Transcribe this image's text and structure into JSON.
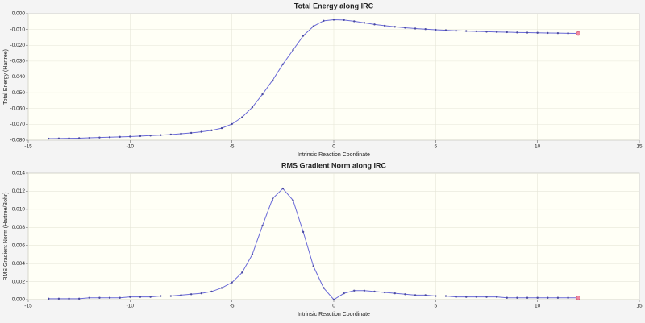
{
  "chart_data": [
    {
      "type": "line",
      "title": "Total Energy along IRC",
      "x_label": "Intrinsic Reaction Coordinate",
      "y_label": "Total Energy (Hartree)",
      "x": [
        -14,
        -13.5,
        -13,
        -12.5,
        -12,
        -11.5,
        -11,
        -10.5,
        -10,
        -9.5,
        -9,
        -8.5,
        -8,
        -7.5,
        -7,
        -6.5,
        -6,
        -5.5,
        -5,
        -4.5,
        -4,
        -3.5,
        -3,
        -2.5,
        -2,
        -1.5,
        -1,
        -0.5,
        0,
        0.5,
        1,
        1.5,
        2,
        2.5,
        3,
        3.5,
        4,
        4.5,
        5,
        5.5,
        6,
        6.5,
        7,
        7.5,
        8,
        8.5,
        9,
        9.5,
        10,
        10.5,
        11,
        11.5,
        12
      ],
      "series": [
        {
          "color": "#6a6ad8",
          "values": [
            -0.079,
            -0.0789,
            -0.0788,
            -0.0787,
            -0.0785,
            -0.0783,
            -0.0781,
            -0.0779,
            -0.0777,
            -0.0774,
            -0.0771,
            -0.0768,
            -0.0764,
            -0.0759,
            -0.0754,
            -0.0747,
            -0.0738,
            -0.0724,
            -0.0698,
            -0.0655,
            -0.0592,
            -0.051,
            -0.042,
            -0.032,
            -0.023,
            -0.014,
            -0.008,
            -0.0045,
            -0.0038,
            -0.004,
            -0.0048,
            -0.0058,
            -0.0068,
            -0.0076,
            -0.0083,
            -0.0089,
            -0.0094,
            -0.0098,
            -0.0102,
            -0.0105,
            -0.0108,
            -0.011,
            -0.0112,
            -0.0114,
            -0.0116,
            -0.0117,
            -0.0119,
            -0.012,
            -0.0121,
            -0.0122,
            -0.0123,
            -0.0124,
            -0.0125
          ]
        }
      ],
      "xlim": [
        -15,
        15
      ],
      "xticks": [
        -15,
        -10,
        -5,
        0,
        5,
        10,
        15
      ],
      "ylim": [
        -0.08,
        0.0
      ],
      "yticks": [
        {
          "value": -0.08,
          "label": "-0.080"
        },
        {
          "value": -0.07,
          "label": "-0.070"
        },
        {
          "value": -0.06,
          "label": "-0.060"
        },
        {
          "value": -0.05,
          "label": "-0.050"
        },
        {
          "value": -0.04,
          "label": "-0.040"
        },
        {
          "value": -0.03,
          "label": "-0.030"
        },
        {
          "value": -0.02,
          "label": "-0.020"
        },
        {
          "value": -0.01,
          "label": "-0.010"
        },
        {
          "value": 0.0,
          "label": "0.000"
        }
      ],
      "grid": true
    },
    {
      "type": "line",
      "title": "RMS Gradient Norm along IRC",
      "x_label": "Intrinsic Reaction Coordinate",
      "y_label": "RMS Gradient Norm (Hartree/Bohr)",
      "x": [
        -14,
        -13.5,
        -13,
        -12.5,
        -12,
        -11.5,
        -11,
        -10.5,
        -10,
        -9.5,
        -9,
        -8.5,
        -8,
        -7.5,
        -7,
        -6.5,
        -6,
        -5.5,
        -5,
        -4.5,
        -4,
        -3.5,
        -3,
        -2.5,
        -2,
        -1.5,
        -1,
        -0.5,
        0,
        0.5,
        1,
        1.5,
        2,
        2.5,
        3,
        3.5,
        4,
        4.5,
        5,
        5.5,
        6,
        6.5,
        7,
        7.5,
        8,
        8.5,
        9,
        9.5,
        10,
        10.5,
        11,
        11.5,
        12
      ],
      "series": [
        {
          "color": "#6a6ad8",
          "values": [
            0.0001,
            0.0001,
            0.0001,
            0.0001,
            0.0002,
            0.0002,
            0.0002,
            0.0002,
            0.0003,
            0.0003,
            0.0003,
            0.0004,
            0.0004,
            0.0005,
            0.0006,
            0.0007,
            0.0009,
            0.0013,
            0.0019,
            0.003,
            0.005,
            0.0082,
            0.0112,
            0.0123,
            0.011,
            0.0075,
            0.0037,
            0.0013,
            0.0,
            0.0007,
            0.001,
            0.001,
            0.0009,
            0.0008,
            0.0007,
            0.0006,
            0.0005,
            0.0005,
            0.0004,
            0.0004,
            0.0003,
            0.0003,
            0.0003,
            0.0003,
            0.0003,
            0.0002,
            0.0002,
            0.0002,
            0.0002,
            0.0002,
            0.0002,
            0.0002,
            0.0002
          ]
        }
      ],
      "xlim": [
        -15,
        15
      ],
      "xticks": [
        -15,
        -10,
        -5,
        0,
        5,
        10,
        15
      ],
      "ylim": [
        0.0,
        0.014
      ],
      "yticks": [
        {
          "value": 0.0,
          "label": "0.000"
        },
        {
          "value": 0.002,
          "label": "0.002"
        },
        {
          "value": 0.004,
          "label": "0.004"
        },
        {
          "value": 0.006,
          "label": "0.006"
        },
        {
          "value": 0.008,
          "label": "0.008"
        },
        {
          "value": 0.01,
          "label": "0.010"
        },
        {
          "value": 0.012,
          "label": "0.012"
        },
        {
          "value": 0.014,
          "label": "0.014"
        }
      ],
      "grid": true
    }
  ]
}
